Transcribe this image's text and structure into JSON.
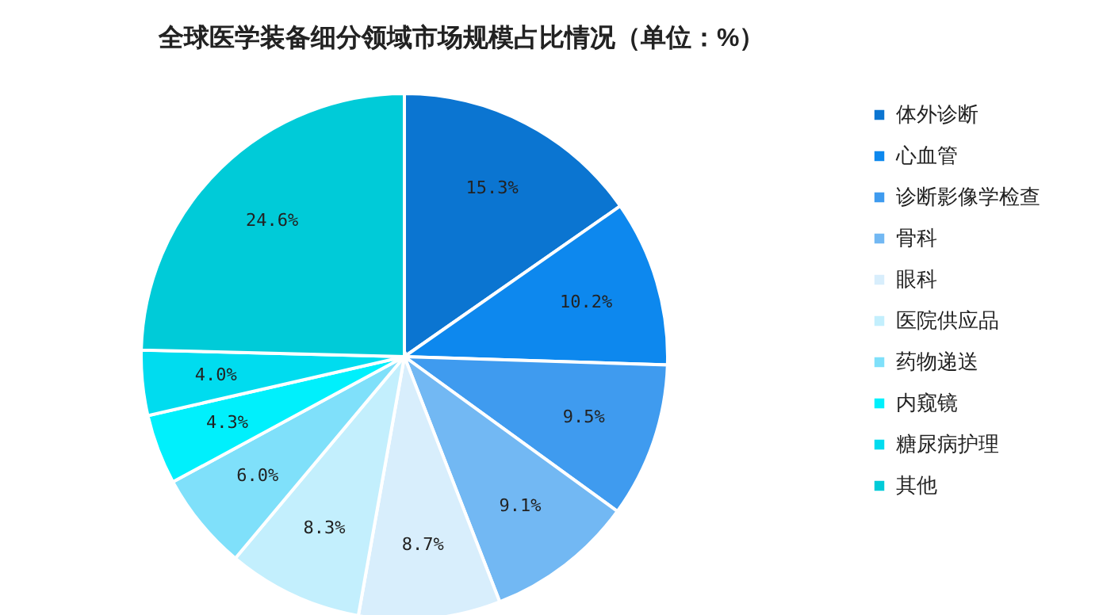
{
  "chart_data": {
    "type": "pie",
    "title": "全球医学装备细分领域市场规模占比情况（单位：%）",
    "categories": [
      "体外诊断",
      "心血管",
      "诊断影像学检查",
      "骨科",
      "眼科",
      "医院供应品",
      "药物递送",
      "内窥镜",
      "糖尿病护理",
      "其他"
    ],
    "values": [
      15.3,
      10.2,
      9.5,
      9.1,
      8.7,
      8.3,
      6.0,
      4.3,
      4.0,
      24.6
    ],
    "value_labels": [
      "15.3%",
      "10.2%",
      "9.5%",
      "9.1%",
      "8.7%",
      "8.3%",
      "6.0%",
      "4.3%",
      "4.0%",
      "24.6%"
    ],
    "colors": [
      "#0b75d1",
      "#0d88ee",
      "#3f9bef",
      "#72b8f3",
      "#d8eefc",
      "#c3effd",
      "#7fe0fa",
      "#00f0fc",
      "#00dcef",
      "#00cbd8"
    ],
    "legend": "right"
  }
}
